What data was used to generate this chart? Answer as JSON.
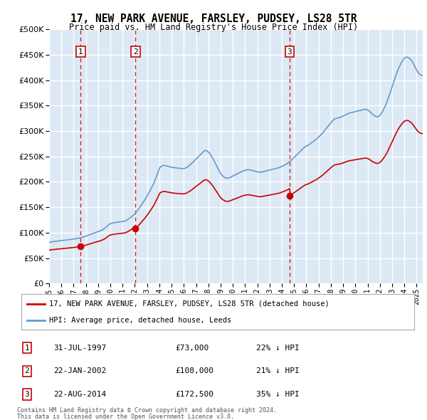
{
  "title": "17, NEW PARK AVENUE, FARSLEY, PUDSEY, LS28 5TR",
  "subtitle": "Price paid vs. HM Land Registry's House Price Index (HPI)",
  "footnote1": "Contains HM Land Registry data © Crown copyright and database right 2024.",
  "footnote2": "This data is licensed under the Open Government Licence v3.0.",
  "legend_red": "17, NEW PARK AVENUE, FARSLEY, PUDSEY, LS28 5TR (detached house)",
  "legend_blue": "HPI: Average price, detached house, Leeds",
  "sales": [
    {
      "label": "1",
      "date": "31-JUL-1997",
      "price": 73000,
      "pct": "22%",
      "dir": "↓"
    },
    {
      "label": "2",
      "date": "22-JAN-2002",
      "price": 108000,
      "pct": "21%",
      "dir": "↓"
    },
    {
      "label": "3",
      "date": "22-AUG-2014",
      "price": 172500,
      "pct": "35%",
      "dir": "↓"
    }
  ],
  "sale_years": [
    1997.583,
    2002.056,
    2014.639
  ],
  "sale_prices": [
    73000,
    108000,
    172500
  ],
  "bg_color": "#dce9f5",
  "grid_color": "#ffffff",
  "red_color": "#cc0000",
  "blue_color": "#6699cc",
  "dashed_color": "#cc0000",
  "ylim": [
    0,
    500000
  ],
  "yticks": [
    0,
    50000,
    100000,
    150000,
    200000,
    250000,
    300000,
    350000,
    400000,
    450000,
    500000
  ],
  "hpi_monthly": {
    "start_year": 1995,
    "start_month": 1,
    "values": [
      81000,
      81500,
      82000,
      82200,
      82500,
      82700,
      83000,
      83200,
      83500,
      83800,
      84000,
      84200,
      84500,
      84800,
      85000,
      85200,
      85500,
      85800,
      86000,
      86200,
      86500,
      86700,
      87000,
      87300,
      87600,
      87900,
      88200,
      88500,
      89000,
      89500,
      90000,
      90500,
      91000,
      91500,
      92000,
      92800,
      93500,
      94200,
      95000,
      95800,
      96500,
      97200,
      98000,
      98800,
      99500,
      100200,
      101000,
      101800,
      102500,
      103200,
      104000,
      104800,
      106000,
      107200,
      108500,
      110000,
      112000,
      114000,
      116000,
      117000,
      118000,
      118500,
      119000,
      119500,
      120000,
      120200,
      120500,
      120800,
      121000,
      121200,
      121500,
      121800,
      122000,
      122500,
      123000,
      124000,
      125000,
      126500,
      128000,
      129500,
      131000,
      132500,
      134000,
      136000,
      138500,
      141000,
      143500,
      146000,
      149000,
      152000,
      155000,
      158000,
      161000,
      164000,
      167000,
      170500,
      174000,
      177500,
      181000,
      185000,
      189000,
      193000,
      197000,
      202000,
      207000,
      212500,
      218000,
      223000,
      228000,
      230000,
      231000,
      232000,
      232500,
      232000,
      231500,
      231000,
      230500,
      230000,
      229500,
      229000,
      228500,
      228200,
      228000,
      227800,
      227500,
      227200,
      227000,
      226800,
      226500,
      226200,
      226000,
      226200,
      226500,
      227000,
      228000,
      229500,
      231000,
      232500,
      234000,
      236000,
      238000,
      240000,
      242000,
      244000,
      246000,
      248000,
      250000,
      252000,
      254000,
      256000,
      258000,
      260000,
      261500,
      262000,
      261000,
      259500,
      258000,
      255000,
      252000,
      249000,
      246000,
      242000,
      238000,
      234000,
      230000,
      226000,
      222000,
      218500,
      215000,
      213000,
      211000,
      209500,
      208000,
      207500,
      207000,
      207500,
      208000,
      209000,
      210000,
      211000,
      212000,
      213000,
      214000,
      215000,
      216000,
      217000,
      218000,
      219000,
      220000,
      221000,
      222000,
      222500,
      223000,
      223500,
      224000,
      224000,
      223500,
      223000,
      222500,
      222000,
      221500,
      221000,
      220500,
      220000,
      219500,
      219200,
      219000,
      219200,
      219500,
      220000,
      220500,
      221000,
      221500,
      222000,
      222500,
      223000,
      223500,
      224000,
      224500,
      225000,
      225500,
      226000,
      226500,
      227000,
      227500,
      228000,
      229000,
      230000,
      231000,
      232000,
      233000,
      234000,
      235000,
      236500,
      238000,
      239500,
      241000,
      243000,
      245000,
      247000,
      249000,
      251000,
      253000,
      255000,
      257000,
      259000,
      261000,
      263000,
      265000,
      267000,
      268500,
      270000,
      271000,
      272000,
      273000,
      274500,
      276000,
      277500,
      279000,
      280500,
      282000,
      283500,
      285000,
      287000,
      289000,
      291000,
      293000,
      295000,
      297500,
      300000,
      302500,
      305000,
      307500,
      310000,
      312500,
      315000,
      317500,
      320000,
      322000,
      323500,
      324500,
      325000,
      325500,
      326000,
      326500,
      327000,
      328000,
      329000,
      330000,
      331000,
      332000,
      333000,
      334000,
      335000,
      335500,
      336000,
      336500,
      337000,
      337500,
      338000,
      338500,
      339000,
      339500,
      340000,
      340500,
      341000,
      341500,
      342000,
      342500,
      342800,
      342500,
      342000,
      341000,
      339500,
      337500,
      335500,
      333500,
      332000,
      330500,
      329500,
      328500,
      328000,
      328500,
      330000,
      332000,
      335000,
      338000,
      342000,
      346000,
      350000,
      355000,
      360000,
      366000,
      372000,
      378000,
      384000,
      390000,
      396000,
      402000,
      408000,
      414000,
      419000,
      424000,
      428000,
      432000,
      436000,
      439000,
      442000,
      444000,
      445000,
      445500,
      445000,
      444000,
      442000,
      440000,
      437000,
      434000,
      430000,
      426000,
      422000,
      418000,
      415000,
      413000,
      411000,
      410000,
      409500,
      409000,
      409500,
      410000,
      411000,
      412000,
      413500,
      415000,
      417000,
      419000,
      421000,
      423000,
      425000
    ]
  }
}
